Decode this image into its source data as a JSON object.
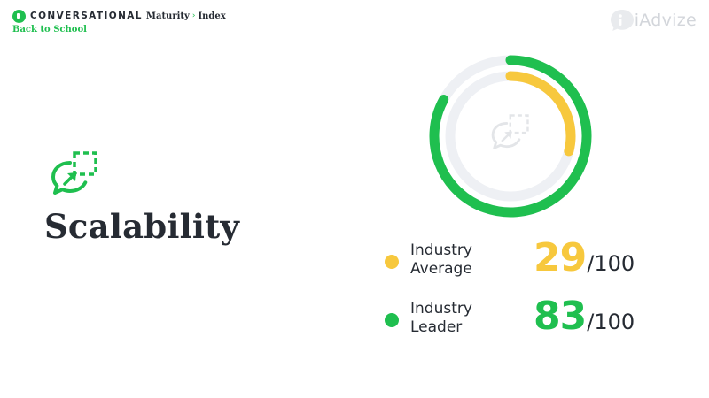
{
  "header": {
    "brand_word1": "CONVERSATIONAL",
    "brand_word2": "Maturity",
    "brand_separator": "›",
    "brand_word3": "Index",
    "subtitle": "Back to School"
  },
  "logo_text": "iAdvize",
  "section": {
    "title": "Scalability",
    "icon": "chat-bubble-expand-icon"
  },
  "colors": {
    "average": "#f7c83d",
    "leader": "#1fbf4f",
    "track": "#eef0f4",
    "text": "#262b33"
  },
  "chart_data": {
    "type": "donut",
    "max": 100,
    "series": [
      {
        "name": "Industry Average",
        "value": 29
      },
      {
        "name": "Industry Leader",
        "value": 83
      }
    ]
  },
  "legend": [
    {
      "label": "Industry\nAverage",
      "value": "29",
      "suffix": "/100"
    },
    {
      "label": "Industry\nLeader",
      "value": "83",
      "suffix": "/100"
    }
  ]
}
